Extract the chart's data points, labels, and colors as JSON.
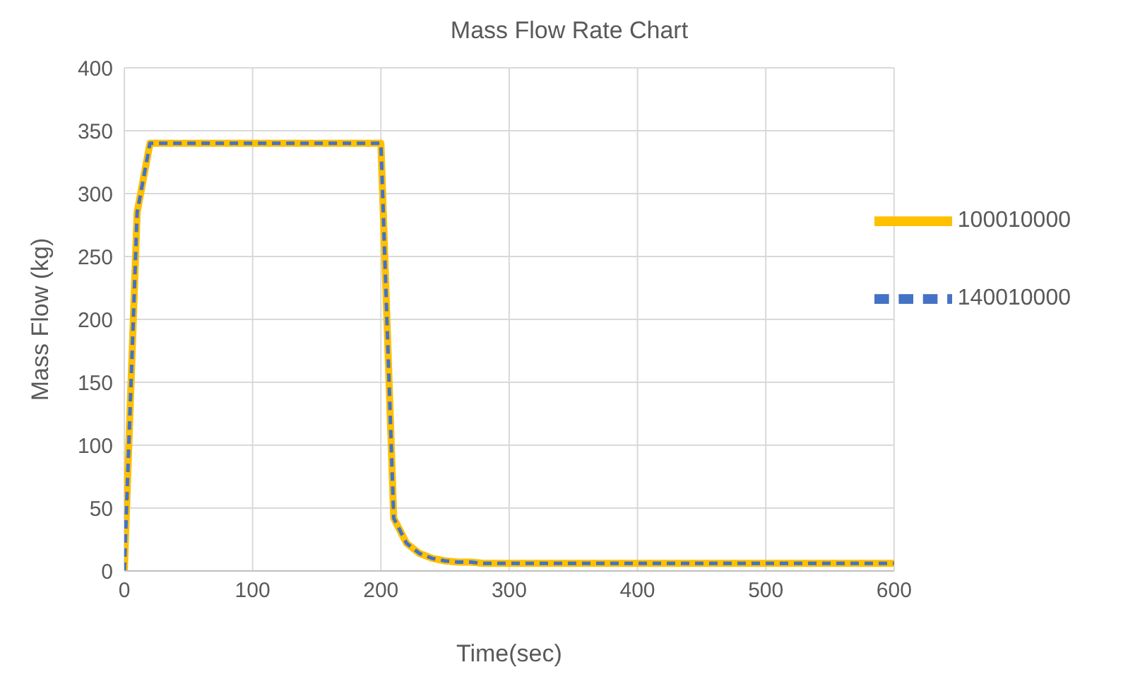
{
  "chart_data": {
    "type": "line",
    "title": "Mass Flow Rate Chart",
    "xlabel": "Time(sec)",
    "ylabel": "Mass Flow (kg)",
    "x": [
      0,
      10,
      20,
      50,
      100,
      150,
      200,
      210,
      220,
      230,
      240,
      250,
      260,
      270,
      280,
      300,
      400,
      500,
      600
    ],
    "series": [
      {
        "name": "100010000",
        "color": "#ffc000",
        "line_style": "solid",
        "values": [
          0,
          285,
          340,
          340,
          340,
          340,
          340,
          42,
          22,
          14,
          10,
          8,
          7,
          7,
          6,
          6,
          6,
          6,
          6
        ]
      },
      {
        "name": "140010000",
        "color": "#4472c4",
        "line_style": "dashed",
        "values": [
          0,
          285,
          340,
          340,
          340,
          340,
          340,
          42,
          22,
          14,
          10,
          8,
          7,
          7,
          6,
          6,
          6,
          6,
          6
        ]
      }
    ],
    "xlim": [
      0,
      600
    ],
    "xticks": [
      0,
      100,
      200,
      300,
      400,
      500,
      600
    ],
    "ylim": [
      0,
      400
    ],
    "yticks": [
      0,
      50,
      100,
      150,
      200,
      250,
      300,
      350,
      400
    ],
    "grid": true,
    "legend": "top right",
    "marker": "none"
  }
}
